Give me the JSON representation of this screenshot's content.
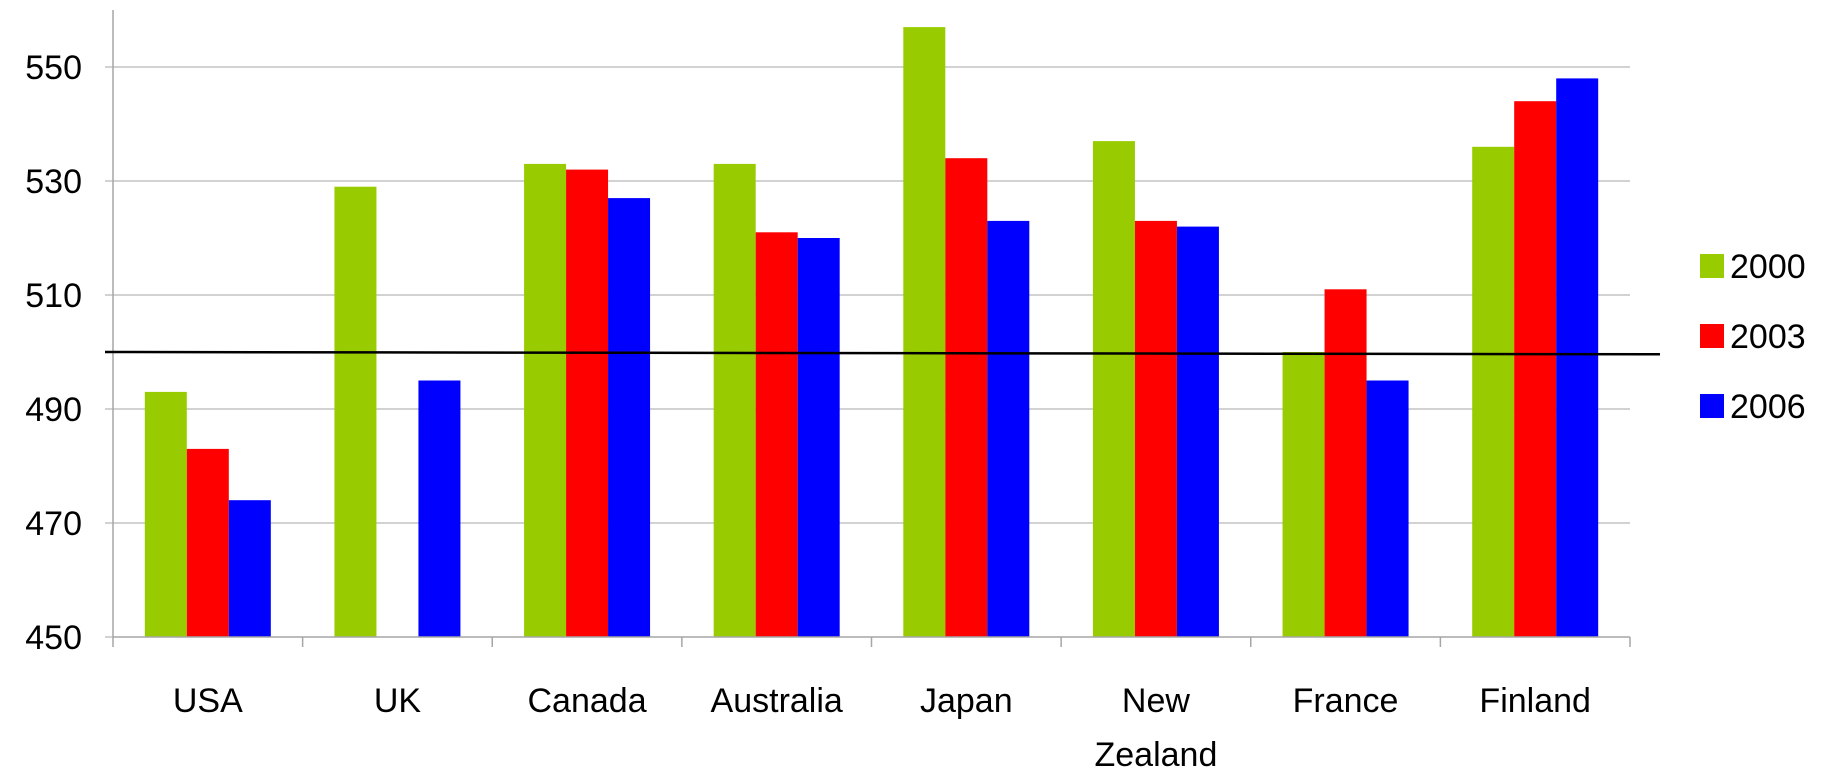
{
  "chart_data": {
    "type": "bar",
    "title": "",
    "xlabel": "",
    "ylabel": "",
    "categories": [
      "USA",
      "UK",
      "Canada",
      "Australia",
      "Japan",
      "New Zealand",
      "France",
      "Finland"
    ],
    "category_lines": [
      [
        "USA"
      ],
      [
        "UK"
      ],
      [
        "Canada"
      ],
      [
        "Australia"
      ],
      [
        "Japan"
      ],
      [
        "New",
        "Zealand"
      ],
      [
        "France"
      ],
      [
        "Finland"
      ]
    ],
    "series": [
      {
        "name": "2000",
        "color": "#99cc00",
        "values": [
          493,
          529,
          533,
          533,
          557,
          537,
          500,
          536
        ]
      },
      {
        "name": "2003",
        "color": "#ff0000",
        "values": [
          483,
          null,
          532,
          521,
          534,
          523,
          511,
          544
        ]
      },
      {
        "name": "2006",
        "color": "#0000ff",
        "values": [
          474,
          495,
          527,
          520,
          523,
          522,
          495,
          548
        ]
      }
    ],
    "ylim": [
      450,
      560
    ],
    "yticks": [
      450,
      470,
      490,
      510,
      530,
      550
    ],
    "grid": true,
    "legend_position": "right",
    "reference_line": {
      "y_start": 500,
      "y_end": 499.6
    }
  }
}
